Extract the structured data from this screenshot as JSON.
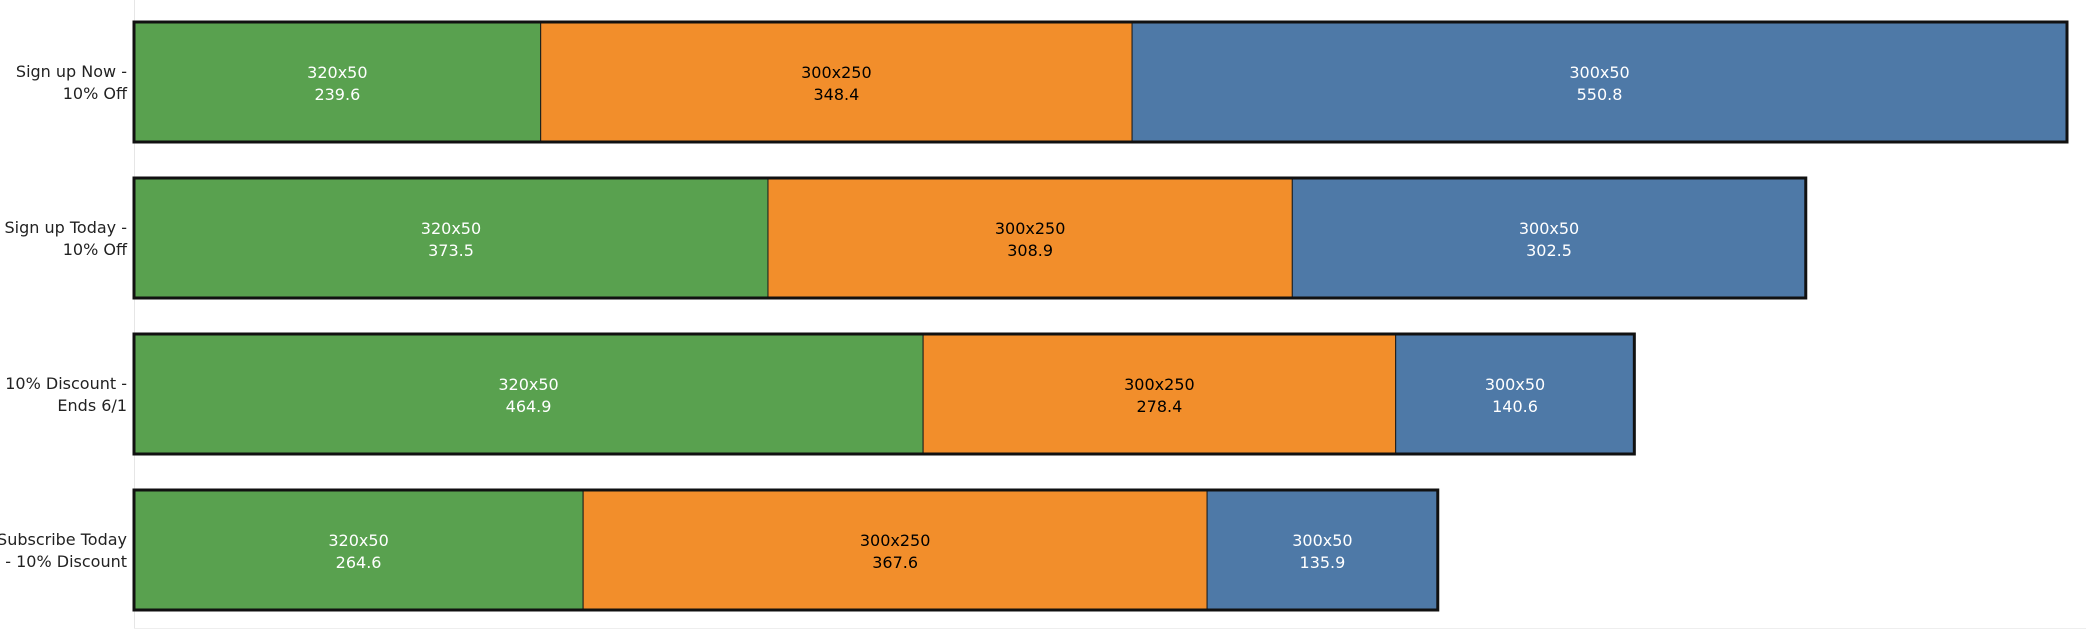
{
  "chart_data": {
    "type": "bar",
    "orientation": "horizontal",
    "stacked": true,
    "categories": [
      [
        "Sign up Now -",
        "10% Off"
      ],
      [
        "Sign up Today -",
        "10% Off"
      ],
      [
        "10% Discount -",
        "Ends 6/1"
      ],
      [
        "Subscribe Today",
        "- 10% Discount"
      ]
    ],
    "series": [
      {
        "name": "320x50",
        "values": [
          239.6,
          373.5,
          464.9,
          264.6
        ],
        "color": "#59a14f",
        "label_color": "#ffffff"
      },
      {
        "name": "300x250",
        "values": [
          348.4,
          308.9,
          278.4,
          367.6
        ],
        "color": "#f28e2b",
        "label_color": "#000000"
      },
      {
        "name": "300x50",
        "values": [
          550.8,
          302.5,
          140.6,
          135.9
        ],
        "color": "#4e79a7",
        "label_color": "#ffffff"
      }
    ],
    "xlim": [
      0,
      1138.8
    ],
    "grid": false,
    "legend": "none",
    "title": "",
    "xlabel": "",
    "ylabel": ""
  }
}
